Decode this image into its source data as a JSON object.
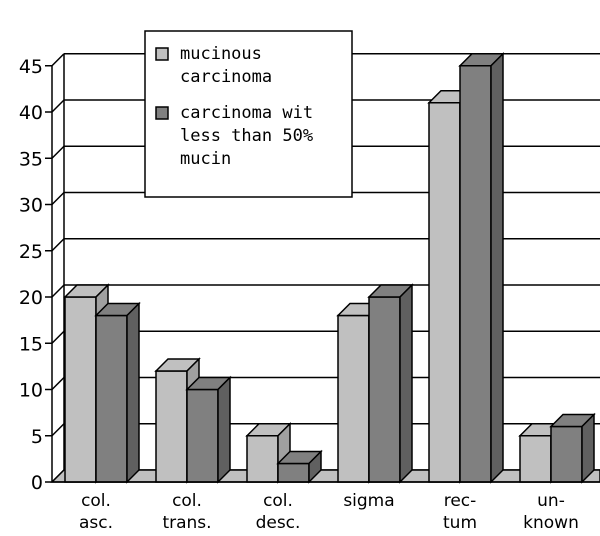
{
  "chart_data": {
    "type": "bar",
    "categories": [
      [
        "col.",
        "asc."
      ],
      [
        "col.",
        "trans."
      ],
      [
        "col.",
        "desc."
      ],
      [
        "sigma"
      ],
      [
        "rec-",
        "tum"
      ],
      [
        "un-",
        "known"
      ]
    ],
    "series": [
      {
        "name": [
          "mucinous",
          "carcinoma"
        ],
        "values": [
          20,
          12,
          5,
          18,
          41,
          5
        ],
        "color": "#c0c0c0"
      },
      {
        "name": [
          "carcinoma wit",
          "less than 50%",
          "mucin"
        ],
        "values": [
          18,
          10,
          2,
          20,
          45,
          6
        ],
        "color": "#808080"
      }
    ],
    "y_ticks": [
      "0",
      "5",
      "10",
      "15",
      "20",
      "25",
      "30",
      "35",
      "40",
      "45"
    ],
    "ylim": [
      0,
      45
    ],
    "grid": true,
    "legend_position": "top-center",
    "style": "3d-bar"
  }
}
